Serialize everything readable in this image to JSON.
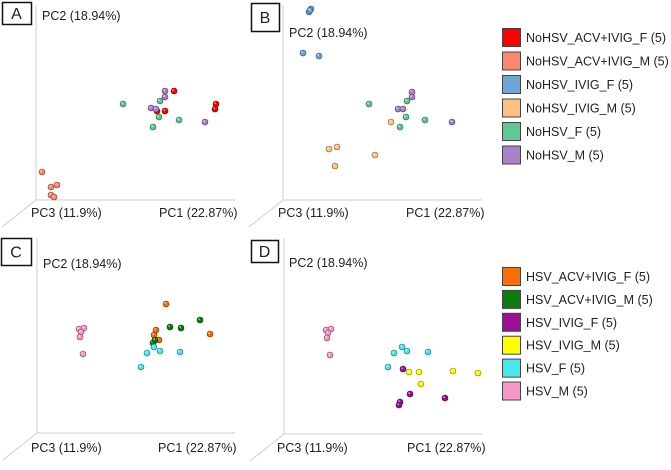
{
  "legends": [
    {
      "id": "top",
      "items": [
        {
          "name": "NoHSV_ACV+IVIG_F (5)",
          "color": "#ff0000"
        },
        {
          "name": "NoHSV_ACV+IVIG_M (5)",
          "color": "#fa8a6e"
        },
        {
          "name": "NoHSV_IVIG_F (5)",
          "color": "#6fa6d8"
        },
        {
          "name": "NoHSV_IVIG_M (5)",
          "color": "#fdc37e"
        },
        {
          "name": "NoHSV_F (5)",
          "color": "#5fc993"
        },
        {
          "name": "NoHSV_M (5)",
          "color": "#a983c9"
        }
      ]
    },
    {
      "id": "bottom",
      "items": [
        {
          "name": "HSV_ACV+IVIG_F (5)",
          "color": "#f86f08"
        },
        {
          "name": "HSV_ACV+IVIG_M (5)",
          "color": "#0a7d0a"
        },
        {
          "name": "HSV_IVIG_F (5)",
          "color": "#9b0f99"
        },
        {
          "name": "HSV_IVIG_M (5)",
          "color": "#ffff00"
        },
        {
          "name": "HSV_F (5)",
          "color": "#48e8ef"
        },
        {
          "name": "HSV_M (5)",
          "color": "#f797c8"
        }
      ]
    }
  ],
  "chart_data": [
    {
      "type": "scatter",
      "panel": "A",
      "xlabel": "PC1 (22.87%)",
      "ylabel": "PC2 (18.94%)",
      "zlabel": "PC3 (11.9%)",
      "xlim": [
        0,
        100
      ],
      "ylim": [
        0,
        100
      ],
      "series": [
        {
          "name": "NoHSV_ACV+IVIG_F",
          "color": "#ff0000",
          "points": [
            [
              69,
              54.5
            ],
            [
              90,
              48
            ],
            [
              89.5,
              45.5
            ],
            [
              60.5,
              44.5
            ],
            [
              64.5,
              44.5
            ]
          ]
        },
        {
          "name": "NoHSV_ACV+IVIG_M",
          "color": "#fa8a6e",
          "points": [
            [
              3,
              14
            ],
            [
              10.5,
              7.5
            ],
            [
              7.5,
              6.5
            ],
            [
              7.5,
              2.5
            ],
            [
              9,
              1.5
            ]
          ]
        },
        {
          "name": "NoHSV_F",
          "color": "#5fc993",
          "points": [
            [
              43.5,
              48
            ],
            [
              62,
              49.5
            ],
            [
              61.5,
              41.5
            ],
            [
              58.5,
              36.5
            ],
            [
              71.5,
              40
            ]
          ]
        },
        {
          "name": "NoHSV_M",
          "color": "#a983c9",
          "points": [
            [
              64.5,
              54.5
            ],
            [
              64.5,
              51.5
            ],
            [
              57.5,
              46
            ],
            [
              60,
              45.5
            ],
            [
              84.5,
              39
            ]
          ]
        }
      ]
    },
    {
      "type": "scatter",
      "panel": "B",
      "xlabel": "PC1 (22.87%)",
      "ylabel": "PC2 (18.94%)",
      "zlabel": "PC3 (11.9%)",
      "xlim": [
        0,
        100
      ],
      "ylim": [
        0,
        100
      ],
      "series": [
        {
          "name": "NoHSV_IVIG_F",
          "color": "#6fa6d8",
          "points": [
            [
              14,
              95.5
            ],
            [
              13,
              94
            ],
            [
              13.5,
              94.8
            ],
            [
              10,
              73.5
            ],
            [
              18,
              72
            ]
          ]
        },
        {
          "name": "NoHSV_IVIG_M",
          "color": "#fdc37e",
          "points": [
            [
              23,
              25.5
            ],
            [
              27,
              26.5
            ],
            [
              26,
              17
            ],
            [
              46,
              22.5
            ],
            [
              54,
              39
            ]
          ]
        },
        {
          "name": "NoHSV_F",
          "color": "#5fc993",
          "points": [
            [
              43,
              48
            ],
            [
              62,
              49.5
            ],
            [
              61.5,
              41.5
            ],
            [
              58.5,
              36.5
            ],
            [
              71,
              40
            ]
          ]
        },
        {
          "name": "NoHSV_M",
          "color": "#a983c9",
          "points": [
            [
              64.5,
              54
            ],
            [
              64.5,
              51.5
            ],
            [
              57.5,
              45.5
            ],
            [
              60,
              45.5
            ],
            [
              84.5,
              39
            ]
          ]
        }
      ]
    },
    {
      "type": "scatter",
      "panel": "C",
      "xlabel": "PC1 (22.87%)",
      "ylabel": "PC2 (18.94%)",
      "zlabel": "PC3 (11.9%)",
      "xlim": [
        0,
        100
      ],
      "ylim": [
        0,
        100
      ],
      "series": [
        {
          "name": "HSV_ACV+IVIG_F",
          "color": "#f86f08",
          "points": [
            [
              64.5,
              64.5
            ],
            [
              59.5,
              51.5
            ],
            [
              58.5,
              49
            ],
            [
              61,
              46.5
            ],
            [
              86.5,
              49.5
            ]
          ]
        },
        {
          "name": "HSV_ACV+IVIG_M",
          "color": "#0a7d0a",
          "points": [
            [
              66.5,
              53
            ],
            [
              72,
              52.5
            ],
            [
              81.5,
              56.5
            ],
            [
              58,
              45
            ],
            [
              59,
              46.5
            ]
          ]
        },
        {
          "name": "HSV_F",
          "color": "#48e8ef",
          "points": [
            [
              58.5,
              43
            ],
            [
              61.5,
              41
            ],
            [
              55,
              40
            ],
            [
              71.5,
              40.5
            ],
            [
              52,
              33
            ]
          ]
        },
        {
          "name": "HSV_M",
          "color": "#f797c8",
          "points": [
            [
              21,
              52
            ],
            [
              23.5,
              52.5
            ],
            [
              22,
              50.5
            ],
            [
              21.5,
              48
            ],
            [
              23,
              39.5
            ]
          ]
        }
      ]
    },
    {
      "type": "scatter",
      "panel": "D",
      "xlabel": "PC1 (22.87%)",
      "ylabel": "PC2 (18.94%)",
      "zlabel": "PC3 (11.9%)",
      "xlim": [
        0,
        100
      ],
      "ylim": [
        0,
        100
      ],
      "series": [
        {
          "name": "HSV_IVIG_F",
          "color": "#9b0f99",
          "points": [
            [
              59.5,
              32.5
            ],
            [
              63,
              20
            ],
            [
              58,
              16
            ],
            [
              57.5,
              14.5
            ],
            [
              80.5,
              18
            ]
          ]
        },
        {
          "name": "HSV_IVIG_M",
          "color": "#ffff00",
          "points": [
            [
              62.5,
              31
            ],
            [
              67.5,
              31
            ],
            [
              68.5,
              25
            ],
            [
              84.5,
              31.5
            ],
            [
              97,
              30.5
            ]
          ]
        },
        {
          "name": "HSV_F",
          "color": "#48e8ef",
          "points": [
            [
              59,
              43.5
            ],
            [
              61.5,
              41.5
            ],
            [
              55,
              40.5
            ],
            [
              72,
              41
            ],
            [
              52,
              33.5
            ]
          ]
        },
        {
          "name": "HSV_M",
          "color": "#f797c8",
          "points": [
            [
              21,
              52
            ],
            [
              23.5,
              52.5
            ],
            [
              22,
              50.5
            ],
            [
              21.5,
              48
            ],
            [
              23,
              39.5
            ]
          ]
        }
      ]
    }
  ]
}
